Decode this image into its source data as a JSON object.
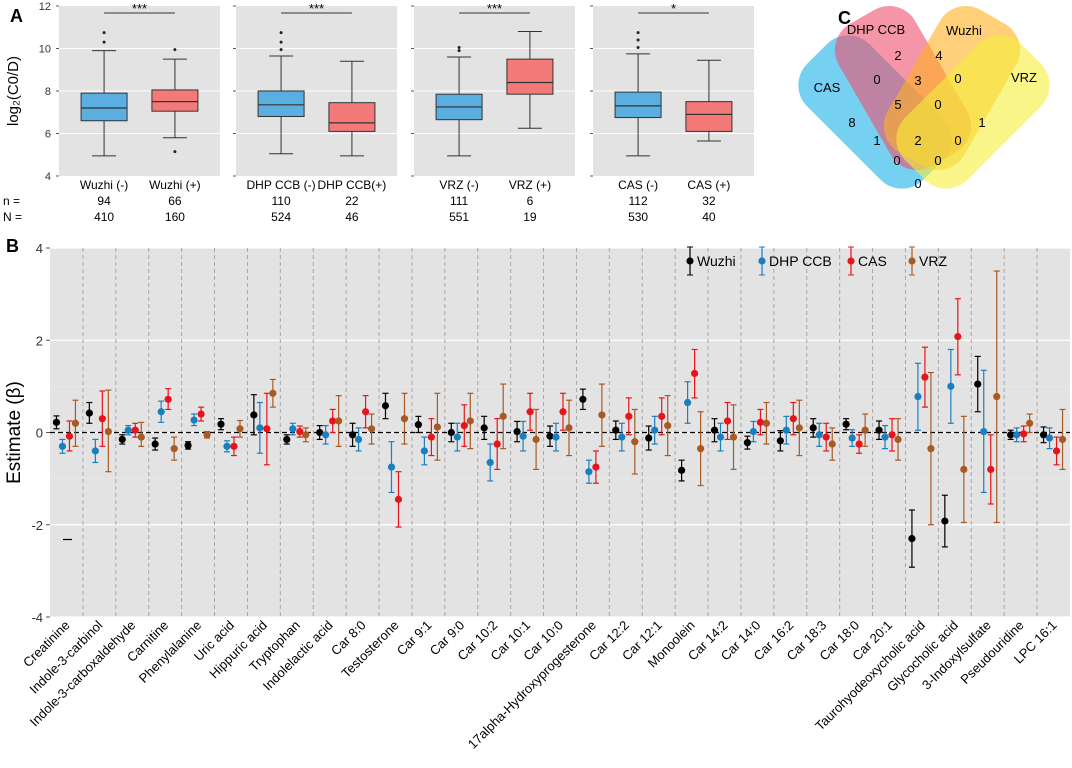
{
  "panel_labels": {
    "a": "A",
    "b": "B",
    "c": "C"
  },
  "chart_data": [
    {
      "type": "box",
      "panel": "A",
      "ylabel": "log₂(C0/D)",
      "ylim": [
        4,
        12
      ],
      "yticks": [
        4,
        6,
        8,
        10,
        12
      ],
      "row_labels": {
        "n": "n =",
        "N": "N ="
      },
      "colors": {
        "neg": "#5aaee0",
        "pos": "#f47a7a"
      },
      "subplots": [
        {
          "significance": "***",
          "groups": [
            {
              "label": "Wuzhi (-)",
              "kind": "neg",
              "n": "94",
              "N": "410",
              "q1": 6.6,
              "median": 7.2,
              "q3": 7.9,
              "whisker_low": 4.95,
              "whisker_high": 9.9,
              "outliers": [
                10.3,
                10.75
              ]
            },
            {
              "label": "Wuzhi (+)",
              "kind": "pos",
              "n": "66",
              "N": "160",
              "q1": 7.05,
              "median": 7.5,
              "q3": 8.05,
              "whisker_low": 5.8,
              "whisker_high": 9.5,
              "outliers": [
                9.95,
                5.15
              ]
            }
          ]
        },
        {
          "significance": "***",
          "groups": [
            {
              "label": "DHP CCB (-)",
              "kind": "neg",
              "n": "110",
              "N": "524",
              "q1": 6.8,
              "median": 7.35,
              "q3": 8.0,
              "whisker_low": 5.05,
              "whisker_high": 9.65,
              "outliers": [
                9.95,
                10.3,
                10.75
              ]
            },
            {
              "label": "DHP CCB(+)",
              "kind": "pos",
              "n": "22",
              "N": "46",
              "q1": 6.1,
              "median": 6.5,
              "q3": 7.45,
              "whisker_low": 4.95,
              "whisker_high": 9.4,
              "outliers": []
            }
          ]
        },
        {
          "significance": "***",
          "groups": [
            {
              "label": "VRZ (-)",
              "kind": "neg",
              "n": "111",
              "N": "551",
              "q1": 6.65,
              "median": 7.25,
              "q3": 7.85,
              "whisker_low": 4.95,
              "whisker_high": 9.6,
              "outliers": [
                9.9,
                10.05
              ]
            },
            {
              "label": "VRZ (+)",
              "kind": "pos",
              "n": "6",
              "N": "19",
              "q1": 7.85,
              "median": 8.4,
              "q3": 9.5,
              "whisker_low": 6.25,
              "whisker_high": 10.8,
              "outliers": []
            }
          ]
        },
        {
          "significance": "*",
          "groups": [
            {
              "label": "CAS (-)",
              "kind": "neg",
              "n": "112",
              "N": "530",
              "q1": 6.75,
              "median": 7.3,
              "q3": 7.95,
              "whisker_low": 4.95,
              "whisker_high": 9.75,
              "outliers": [
                10.05,
                10.4,
                10.75
              ]
            },
            {
              "label": "CAS (+)",
              "kind": "pos",
              "n": "32",
              "N": "40",
              "q1": 6.1,
              "median": 6.9,
              "q3": 7.5,
              "whisker_low": 5.65,
              "whisker_high": 9.45,
              "outliers": []
            }
          ]
        }
      ]
    },
    {
      "type": "scatter",
      "panel": "B",
      "ylabel": "Estimate (β)",
      "ylim": [
        -4,
        4
      ],
      "yticks": [
        -4,
        -2,
        0,
        2,
        4
      ],
      "grid": true,
      "legend_position": "top-right",
      "series": [
        {
          "name": "Wuzhi",
          "color": "#000000"
        },
        {
          "name": "DHP CCB",
          "color": "#1a7fc1"
        },
        {
          "name": "CAS",
          "color": "#e8141c"
        },
        {
          "name": "VRZ",
          "color": "#a85a25"
        }
      ],
      "categories": [
        {
          "label": "Creatinine",
          "values": [
            [
              0.22,
              0.08,
              0.36
            ],
            [
              -0.3,
              -0.45,
              -0.15
            ],
            [
              -0.08,
              -0.4,
              0.25
            ],
            [
              0.2,
              -0.3,
              0.7
            ]
          ]
        },
        {
          "label": "Indole-3-carbinol",
          "values": [
            [
              0.42,
              0.2,
              0.65
            ],
            [
              -0.4,
              -0.65,
              -0.15
            ],
            [
              0.3,
              -0.3,
              0.9
            ],
            [
              0.02,
              -0.85,
              0.92
            ]
          ]
        },
        {
          "label": "Indole-3-carboxaldehyde",
          "values": [
            [
              -0.15,
              -0.25,
              -0.05
            ],
            [
              0.05,
              -0.05,
              0.15
            ],
            [
              0.05,
              -0.1,
              0.2
            ],
            [
              -0.1,
              -0.3,
              0.22
            ]
          ]
        },
        {
          "label": "Carnitine",
          "values": [
            [
              -0.25,
              -0.38,
              -0.12
            ],
            [
              0.45,
              0.22,
              0.68
            ],
            [
              0.72,
              0.5,
              0.95
            ],
            [
              -0.35,
              -0.6,
              -0.1
            ]
          ]
        },
        {
          "label": "Phenylalanine",
          "values": [
            [
              -0.28,
              -0.36,
              -0.2
            ],
            [
              0.27,
              0.15,
              0.4
            ],
            [
              0.4,
              0.25,
              0.55
            ],
            [
              -0.05,
              -0.12,
              0.02
            ]
          ]
        },
        {
          "label": "Uric acid",
          "values": [
            [
              0.18,
              0.06,
              0.3
            ],
            [
              -0.3,
              -0.42,
              -0.18
            ],
            [
              -0.3,
              -0.5,
              -0.1
            ],
            [
              0.08,
              -0.1,
              0.26
            ]
          ]
        },
        {
          "label": "Hippuric acid",
          "values": [
            [
              0.38,
              -0.05,
              0.82
            ],
            [
              0.1,
              -0.45,
              0.65
            ],
            [
              0.08,
              -0.7,
              0.85
            ],
            [
              0.85,
              0.55,
              1.15
            ]
          ]
        },
        {
          "label": "Tryptophan",
          "values": [
            [
              -0.15,
              -0.25,
              -0.05
            ],
            [
              0.08,
              -0.05,
              0.2
            ],
            [
              0.02,
              -0.1,
              0.14
            ],
            [
              -0.05,
              -0.2,
              0.1
            ]
          ]
        },
        {
          "label": "Indolelactic acid",
          "values": [
            [
              0.0,
              -0.15,
              0.15
            ],
            [
              -0.05,
              -0.25,
              0.15
            ],
            [
              0.25,
              0.0,
              0.5
            ],
            [
              0.25,
              -0.3,
              0.8
            ]
          ]
        },
        {
          "label": "Car 8:0",
          "values": [
            [
              -0.05,
              -0.3,
              0.2
            ],
            [
              -0.15,
              -0.4,
              0.1
            ],
            [
              0.45,
              0.1,
              0.8
            ],
            [
              0.08,
              -0.25,
              0.4
            ]
          ]
        },
        {
          "label": "Testosterone",
          "values": [
            [
              0.58,
              0.3,
              0.85
            ],
            [
              -0.75,
              -1.3,
              -0.2
            ],
            [
              -1.45,
              -2.05,
              -0.85
            ],
            [
              0.3,
              -0.25,
              0.85
            ]
          ]
        },
        {
          "label": "Car 9:1",
          "values": [
            [
              0.17,
              0.0,
              0.35
            ],
            [
              -0.4,
              -0.7,
              -0.1
            ],
            [
              -0.1,
              -0.5,
              0.3
            ],
            [
              0.12,
              -0.6,
              0.85
            ]
          ]
        },
        {
          "label": "Car 9:0",
          "values": [
            [
              0.0,
              -0.2,
              0.2
            ],
            [
              -0.1,
              -0.4,
              0.2
            ],
            [
              0.15,
              -0.3,
              0.6
            ],
            [
              0.25,
              -0.35,
              0.85
            ]
          ]
        },
        {
          "label": "Car 10:2",
          "values": [
            [
              0.1,
              -0.15,
              0.35
            ],
            [
              -0.65,
              -1.05,
              -0.25
            ],
            [
              -0.25,
              -0.8,
              0.3
            ],
            [
              0.35,
              -0.35,
              1.05
            ]
          ]
        },
        {
          "label": "Car 10:1",
          "values": [
            [
              0.02,
              -0.2,
              0.24
            ],
            [
              -0.08,
              -0.4,
              0.24
            ],
            [
              0.45,
              0.05,
              0.85
            ],
            [
              -0.15,
              -0.8,
              0.5
            ]
          ]
        },
        {
          "label": "Car 10:0",
          "values": [
            [
              -0.08,
              -0.3,
              0.14
            ],
            [
              -0.1,
              -0.4,
              0.2
            ],
            [
              0.45,
              0.05,
              0.85
            ],
            [
              0.1,
              -0.5,
              0.7
            ]
          ]
        },
        {
          "label": "17alpha-Hydroxyprogesterone",
          "values": [
            [
              0.72,
              0.5,
              0.94
            ],
            [
              -0.85,
              -1.1,
              -0.6
            ],
            [
              -0.75,
              -1.1,
              -0.4
            ],
            [
              0.38,
              -0.3,
              1.05
            ]
          ]
        },
        {
          "label": "Car 12:2",
          "values": [
            [
              0.05,
              -0.15,
              0.25
            ],
            [
              -0.1,
              -0.4,
              0.2
            ],
            [
              0.35,
              -0.05,
              0.75
            ],
            [
              -0.2,
              -0.9,
              0.5
            ]
          ]
        },
        {
          "label": "Car 12:1",
          "values": [
            [
              -0.12,
              -0.38,
              0.14
            ],
            [
              0.05,
              -0.25,
              0.35
            ],
            [
              0.35,
              -0.05,
              0.75
            ],
            [
              0.15,
              -0.5,
              0.8
            ]
          ]
        },
        {
          "label": "Monoolein",
          "values": [
            [
              -0.82,
              -1.05,
              -0.6
            ],
            [
              0.65,
              0.2,
              1.1
            ],
            [
              1.28,
              0.75,
              1.8
            ],
            [
              -0.35,
              -1.15,
              0.45
            ]
          ]
        },
        {
          "label": "Car 14:2",
          "values": [
            [
              0.05,
              -0.2,
              0.3
            ],
            [
              -0.1,
              -0.4,
              0.2
            ],
            [
              0.25,
              -0.15,
              0.65
            ],
            [
              -0.1,
              -0.8,
              0.6
            ]
          ]
        },
        {
          "label": "Car 14:0",
          "values": [
            [
              -0.22,
              -0.36,
              -0.08
            ],
            [
              0.02,
              -0.2,
              0.24
            ],
            [
              0.22,
              -0.05,
              0.5
            ],
            [
              0.2,
              -0.25,
              0.65
            ]
          ]
        },
        {
          "label": "Car 16:2",
          "values": [
            [
              -0.18,
              -0.4,
              0.04
            ],
            [
              0.05,
              -0.25,
              0.35
            ],
            [
              0.3,
              -0.05,
              0.65
            ],
            [
              0.1,
              -0.5,
              0.7
            ]
          ]
        },
        {
          "label": "Car 18:3",
          "values": [
            [
              0.1,
              -0.1,
              0.3
            ],
            [
              -0.05,
              -0.3,
              0.2
            ],
            [
              -0.1,
              -0.4,
              0.2
            ],
            [
              -0.25,
              -0.6,
              0.1
            ]
          ]
        },
        {
          "label": "Car 18:0",
          "values": [
            [
              0.18,
              0.06,
              0.3
            ],
            [
              -0.12,
              -0.3,
              0.06
            ],
            [
              -0.25,
              -0.45,
              -0.05
            ],
            [
              0.05,
              -0.3,
              0.4
            ]
          ]
        },
        {
          "label": "Car 20:1",
          "values": [
            [
              0.05,
              -0.15,
              0.25
            ],
            [
              -0.1,
              -0.35,
              0.15
            ],
            [
              -0.05,
              -0.4,
              0.3
            ],
            [
              -0.15,
              -0.6,
              0.3
            ]
          ]
        },
        {
          "label": "Taurohyodeoxycholic acid",
          "values": [
            [
              -2.3,
              -2.92,
              -1.68
            ],
            [
              0.78,
              0.05,
              1.5
            ],
            [
              1.2,
              0.55,
              1.85
            ],
            [
              -0.35,
              -2.0,
              1.3
            ]
          ]
        },
        {
          "label": "Glycocholic acid",
          "values": [
            [
              -1.92,
              -2.48,
              -1.36
            ],
            [
              1.0,
              0.2,
              1.8
            ],
            [
              2.08,
              1.25,
              2.9
            ],
            [
              -0.8,
              -1.95,
              0.35
            ]
          ]
        },
        {
          "label": "3-Indoxylsulfate",
          "values": [
            [
              1.05,
              0.45,
              1.65
            ],
            [
              0.02,
              -1.3,
              1.35
            ],
            [
              -0.8,
              -1.55,
              -0.05
            ],
            [
              0.78,
              -1.95,
              3.5
            ]
          ]
        },
        {
          "label": "Pseudouridine",
          "values": [
            [
              -0.05,
              -0.15,
              0.05
            ],
            [
              -0.05,
              -0.2,
              0.1
            ],
            [
              -0.03,
              -0.2,
              0.14
            ],
            [
              0.2,
              0.0,
              0.4
            ]
          ]
        },
        {
          "label": "LPC 16:1",
          "values": [
            [
              -0.05,
              -0.22,
              0.12
            ],
            [
              -0.12,
              -0.35,
              0.1
            ],
            [
              -0.4,
              -0.7,
              -0.1
            ],
            [
              -0.15,
              -0.8,
              0.5
            ]
          ]
        }
      ],
      "stray_mark_y": -2.32
    },
    {
      "type": "venn",
      "panel": "C",
      "sets": [
        {
          "name": "CAS",
          "color": "#1ab0e8"
        },
        {
          "name": "DHP CCB",
          "color": "#ee4f6e"
        },
        {
          "name": "Wuzhi",
          "color": "#ffb11f"
        },
        {
          "name": "VRZ",
          "color": "#f5ee3a"
        }
      ],
      "regions": [
        {
          "sets": "CAS",
          "count": "8"
        },
        {
          "sets": "DHP CCB",
          "count": "2"
        },
        {
          "sets": "Wuzhi",
          "count": "4"
        },
        {
          "sets": "VRZ",
          "count": "1"
        },
        {
          "sets": "CAS&DHP CCB",
          "count": "0"
        },
        {
          "sets": "DHP CCB&Wuzhi",
          "count": "3"
        },
        {
          "sets": "Wuzhi&VRZ",
          "count": "0"
        },
        {
          "sets": "CAS&DHP CCB&Wuzhi",
          "count": "5"
        },
        {
          "sets": "DHP CCB&Wuzhi&VRZ",
          "count": "0"
        },
        {
          "sets": "CAS&Wuzhi",
          "count": "1"
        },
        {
          "sets": "CAS&DHP CCB&Wuzhi&VRZ",
          "count": "2"
        },
        {
          "sets": "DHP CCB&VRZ",
          "count": "0"
        },
        {
          "sets": "CAS&Wuzhi&VRZ",
          "count": "0"
        },
        {
          "sets": "CAS&DHP CCB&VRZ",
          "count": "0"
        },
        {
          "sets": "CAS&VRZ",
          "count": "0"
        }
      ]
    }
  ]
}
